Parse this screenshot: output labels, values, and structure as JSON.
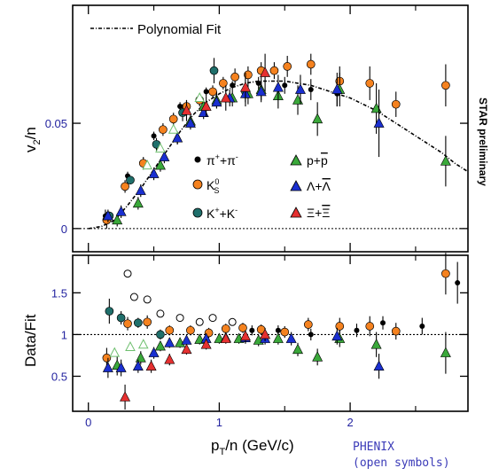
{
  "chart_data": [
    {
      "panel": "top",
      "type": "scatter",
      "ylabel_main": "v",
      "ylabel_sub": "2",
      "ylabel_tail": "/n",
      "xlim": [
        -0.12,
        2.9
      ],
      "ylim": [
        -0.011,
        0.106
      ],
      "yticks": [
        {
          "value": 0,
          "label": "0"
        },
        {
          "value": 0.05,
          "label": "0.05"
        }
      ],
      "xticks_minor": [
        0.5,
        1.5,
        2.5
      ],
      "fit_label": "Polynomial Fit",
      "side_label": "STAR preliminary",
      "zero_line": 0,
      "fit_curve": [
        [
          0.0,
          0.0
        ],
        [
          0.1,
          0.001
        ],
        [
          0.2,
          0.004
        ],
        [
          0.3,
          0.011
        ],
        [
          0.4,
          0.019
        ],
        [
          0.5,
          0.028
        ],
        [
          0.6,
          0.037
        ],
        [
          0.7,
          0.046
        ],
        [
          0.8,
          0.054
        ],
        [
          0.9,
          0.06
        ],
        [
          1.0,
          0.064
        ],
        [
          1.1,
          0.067
        ],
        [
          1.2,
          0.069
        ],
        [
          1.3,
          0.07
        ],
        [
          1.4,
          0.07
        ],
        [
          1.5,
          0.07
        ],
        [
          1.6,
          0.069
        ],
        [
          1.7,
          0.068
        ],
        [
          1.8,
          0.066
        ],
        [
          1.9,
          0.064
        ],
        [
          2.0,
          0.062
        ],
        [
          2.1,
          0.059
        ],
        [
          2.2,
          0.056
        ],
        [
          2.3,
          0.052
        ],
        [
          2.4,
          0.048
        ],
        [
          2.5,
          0.044
        ],
        [
          2.6,
          0.04
        ],
        [
          2.7,
          0.036
        ],
        [
          2.8,
          0.031
        ],
        [
          2.9,
          0.027
        ]
      ],
      "legend": [
        {
          "key": "pion",
          "text_main": "π",
          "sup1": "+",
          "mid": "+π",
          "sup2": "-",
          "tail": ""
        },
        {
          "key": "kshort",
          "text_main": "K",
          "sup1": "",
          "mid": "",
          "sup2": "",
          "tail": "",
          "sub": "S",
          "supk": "0"
        },
        {
          "key": "kaon",
          "text_main": "K",
          "sup1": "+",
          "mid": "+K",
          "sup2": "-",
          "tail": ""
        },
        {
          "key": "proton",
          "text_main": "p+",
          "bar": "p"
        },
        {
          "key": "lambda",
          "text_main": "Λ+",
          "bar": "Λ"
        },
        {
          "key": "xi",
          "text_main": "Ξ+",
          "bar": "Ξ"
        }
      ],
      "series": [
        {
          "key": "pion",
          "marker": "circle",
          "color": "#000000",
          "points": [
            [
              0.13,
              0.006,
              0.003
            ],
            [
              0.3,
              0.025,
              0.002
            ],
            [
              0.5,
              0.044,
              0.002
            ],
            [
              0.7,
              0.058,
              0.002
            ],
            [
              0.9,
              0.065,
              0.002
            ],
            [
              1.1,
              0.068,
              0.002
            ],
            [
              1.3,
              0.069,
              0.003
            ],
            [
              1.5,
              0.068,
              0.004
            ],
            [
              1.7,
              0.066,
              0.005
            ],
            [
              1.9,
              0.064,
              0.006
            ]
          ]
        },
        {
          "key": "kshort",
          "marker": "circle",
          "color": "#f5821f",
          "points": [
            [
              0.14,
              0.004,
              0.004
            ],
            [
              0.28,
              0.02,
              0.003
            ],
            [
              0.42,
              0.031,
              0.003
            ],
            [
              0.57,
              0.047,
              0.003
            ],
            [
              0.65,
              0.052,
              0.003
            ],
            [
              0.75,
              0.058,
              0.003
            ],
            [
              0.85,
              0.061,
              0.003
            ],
            [
              0.95,
              0.065,
              0.003
            ],
            [
              1.03,
              0.069,
              0.003
            ],
            [
              1.12,
              0.072,
              0.004
            ],
            [
              1.22,
              0.073,
              0.004
            ],
            [
              1.32,
              0.075,
              0.004
            ],
            [
              1.42,
              0.075,
              0.004
            ],
            [
              1.52,
              0.077,
              0.005
            ],
            [
              1.7,
              0.078,
              0.005
            ],
            [
              1.92,
              0.07,
              0.007
            ],
            [
              2.15,
              0.069,
              0.008
            ],
            [
              2.35,
              0.059,
              0.006
            ],
            [
              2.73,
              0.068,
              0.01
            ]
          ]
        },
        {
          "key": "kaon",
          "marker": "circle",
          "color": "#1f6f6b",
          "points": [
            [
              0.16,
              0.006,
              0.002
            ],
            [
              0.32,
              0.023,
              0.002
            ],
            [
              0.52,
              0.04,
              0.003
            ],
            [
              0.72,
              0.055,
              0.004
            ],
            [
              0.96,
              0.075,
              0.006
            ],
            [
              1.2,
              0.065,
              0.007
            ]
          ]
        },
        {
          "key": "proton",
          "marker": "triangle",
          "color": "#3aa83a",
          "points": [
            [
              0.22,
              0.004,
              0.003
            ],
            [
              0.38,
              0.012,
              0.003
            ],
            [
              0.55,
              0.03,
              0.003
            ],
            [
              0.68,
              0.043,
              0.003
            ],
            [
              0.78,
              0.051,
              0.003
            ],
            [
              0.88,
              0.058,
              0.003
            ],
            [
              0.98,
              0.061,
              0.004
            ],
            [
              1.1,
              0.062,
              0.004
            ],
            [
              1.22,
              0.064,
              0.005
            ],
            [
              1.32,
              0.066,
              0.005
            ],
            [
              1.45,
              0.063,
              0.006
            ],
            [
              1.6,
              0.061,
              0.007
            ],
            [
              1.75,
              0.052,
              0.008
            ],
            [
              1.92,
              0.066,
              0.008
            ],
            [
              2.2,
              0.057,
              0.012
            ],
            [
              2.73,
              0.032,
              0.012
            ]
          ]
        },
        {
          "key": "lambda",
          "marker": "triangle",
          "color": "#1a2fd0",
          "points": [
            [
              0.15,
              0.006,
              0.003
            ],
            [
              0.25,
              0.008,
              0.003
            ],
            [
              0.4,
              0.018,
              0.003
            ],
            [
              0.5,
              0.026,
              0.003
            ],
            [
              0.58,
              0.034,
              0.003
            ],
            [
              0.68,
              0.043,
              0.003
            ],
            [
              0.78,
              0.05,
              0.003
            ],
            [
              0.88,
              0.055,
              0.003
            ],
            [
              0.98,
              0.06,
              0.003
            ],
            [
              1.08,
              0.062,
              0.004
            ],
            [
              1.2,
              0.064,
              0.004
            ],
            [
              1.32,
              0.065,
              0.005
            ],
            [
              1.45,
              0.067,
              0.006
            ],
            [
              1.62,
              0.066,
              0.007
            ],
            [
              1.9,
              0.066,
              0.008
            ],
            [
              2.22,
              0.05,
              0.016
            ]
          ]
        },
        {
          "key": "xi",
          "marker": "triangle",
          "color": "#e53030",
          "points": [
            [
              0.75,
              0.056,
              0.005
            ],
            [
              0.9,
              0.058,
              0.005
            ],
            [
              1.05,
              0.062,
              0.006
            ],
            [
              1.2,
              0.067,
              0.007
            ],
            [
              1.35,
              0.074,
              0.009
            ]
          ]
        },
        {
          "key": "phenix-open",
          "marker": "open-triangle",
          "color": "#6fbf6f",
          "points": [
            [
              0.45,
              0.03,
              0.0
            ],
            [
              0.55,
              0.038,
              0.0
            ],
            [
              0.65,
              0.047,
              0.0
            ],
            [
              0.85,
              0.062,
              0.0
            ]
          ]
        }
      ]
    },
    {
      "panel": "bottom",
      "type": "scatter",
      "ylabel": "Data/Fit",
      "xlabel_main": "p",
      "xlabel_sub": "T",
      "xlabel_tail": "/n (GeV/c)",
      "xlim": [
        -0.12,
        2.9
      ],
      "ylim": [
        0.08,
        1.95
      ],
      "yticks": [
        {
          "value": 0.5,
          "label": "0.5"
        },
        {
          "value": 1,
          "label": "1"
        },
        {
          "value": 1.5,
          "label": "1.5"
        }
      ],
      "xticks": [
        {
          "value": 0,
          "label": "0"
        },
        {
          "value": 1,
          "label": "1"
        },
        {
          "value": 2,
          "label": "2"
        }
      ],
      "ref_line": 1,
      "phenix_note": [
        "PHENIX",
        "(open symbols)"
      ],
      "series": [
        {
          "key": "pion",
          "marker": "circle",
          "color": "#000000",
          "points": [
            [
              1.25,
              1.05,
              0.06
            ],
            [
              1.45,
              1.05,
              0.06
            ],
            [
              1.7,
              1.0,
              0.07
            ],
            [
              2.05,
              1.05,
              0.08
            ],
            [
              2.25,
              1.14,
              0.08
            ],
            [
              2.55,
              1.1,
              0.1
            ],
            [
              2.82,
              1.62,
              0.25
            ]
          ]
        },
        {
          "key": "kshort",
          "marker": "circle",
          "color": "#f5821f",
          "points": [
            [
              0.14,
              0.72,
              0.12
            ],
            [
              0.3,
              1.13,
              0.08
            ],
            [
              0.45,
              1.15,
              0.08
            ],
            [
              0.62,
              1.05,
              0.06
            ],
            [
              0.78,
              1.05,
              0.06
            ],
            [
              0.92,
              1.02,
              0.06
            ],
            [
              1.05,
              1.07,
              0.06
            ],
            [
              1.18,
              1.08,
              0.06
            ],
            [
              1.32,
              1.06,
              0.06
            ],
            [
              1.5,
              1.03,
              0.07
            ],
            [
              1.68,
              1.12,
              0.08
            ],
            [
              1.92,
              1.1,
              0.1
            ],
            [
              2.15,
              1.1,
              0.12
            ],
            [
              2.35,
              1.04,
              0.1
            ],
            [
              2.73,
              1.73,
              0.25
            ]
          ]
        },
        {
          "key": "kaon",
          "marker": "circle",
          "color": "#1f6f6b",
          "points": [
            [
              0.16,
              1.28,
              0.15
            ],
            [
              0.25,
              1.2,
              0.08
            ],
            [
              0.38,
              1.14,
              0.06
            ],
            [
              0.55,
              1.0,
              0.06
            ]
          ]
        },
        {
          "key": "proton",
          "marker": "triangle",
          "color": "#3aa83a",
          "points": [
            [
              0.22,
              0.63,
              0.12
            ],
            [
              0.4,
              0.72,
              0.08
            ],
            [
              0.55,
              0.86,
              0.06
            ],
            [
              0.7,
              0.9,
              0.06
            ],
            [
              0.85,
              0.94,
              0.06
            ],
            [
              1.0,
              0.95,
              0.06
            ],
            [
              1.15,
              0.95,
              0.06
            ],
            [
              1.3,
              0.93,
              0.07
            ],
            [
              1.45,
              0.95,
              0.07
            ],
            [
              1.6,
              0.82,
              0.08
            ],
            [
              1.75,
              0.73,
              0.1
            ],
            [
              1.92,
              0.95,
              0.1
            ],
            [
              2.2,
              0.88,
              0.15
            ],
            [
              2.73,
              0.78,
              0.25
            ]
          ]
        },
        {
          "key": "lambda",
          "marker": "triangle",
          "color": "#1a2fd0",
          "points": [
            [
              0.15,
              0.6,
              0.12
            ],
            [
              0.25,
              0.6,
              0.1
            ],
            [
              0.38,
              0.62,
              0.08
            ],
            [
              0.5,
              0.78,
              0.07
            ],
            [
              0.62,
              0.9,
              0.06
            ],
            [
              0.75,
              0.93,
              0.06
            ],
            [
              0.9,
              0.95,
              0.06
            ],
            [
              1.05,
              0.96,
              0.06
            ],
            [
              1.2,
              0.96,
              0.07
            ],
            [
              1.35,
              0.95,
              0.07
            ],
            [
              1.55,
              0.95,
              0.08
            ],
            [
              1.9,
              0.98,
              0.1
            ],
            [
              2.22,
              0.62,
              0.15
            ]
          ]
        },
        {
          "key": "xi",
          "marker": "triangle",
          "color": "#e53030",
          "points": [
            [
              0.28,
              0.25,
              0.15
            ],
            [
              0.48,
              0.62,
              0.08
            ],
            [
              0.62,
              0.7,
              0.07
            ],
            [
              0.75,
              0.82,
              0.06
            ],
            [
              0.9,
              0.88,
              0.06
            ],
            [
              1.05,
              0.95,
              0.06
            ],
            [
              1.2,
              0.98,
              0.07
            ],
            [
              1.35,
              1.0,
              0.08
            ]
          ]
        },
        {
          "key": "phenix-open",
          "marker": "open-circle",
          "color": "#000000",
          "points": [
            [
              0.3,
              1.73,
              0.0
            ],
            [
              0.35,
              1.45,
              0.0
            ],
            [
              0.45,
              1.42,
              0.0
            ],
            [
              0.55,
              1.25,
              0.0
            ],
            [
              0.7,
              1.2,
              0.0
            ],
            [
              0.85,
              1.15,
              0.0
            ],
            [
              0.95,
              1.2,
              0.0
            ],
            [
              1.1,
              1.15,
              0.0
            ]
          ]
        },
        {
          "key": "phenix-open-tri",
          "marker": "open-triangle",
          "color": "#6fbf6f",
          "points": [
            [
              0.2,
              0.78,
              0.0
            ],
            [
              0.32,
              0.85,
              0.0
            ],
            [
              0.42,
              0.88,
              0.0
            ]
          ]
        }
      ]
    }
  ]
}
